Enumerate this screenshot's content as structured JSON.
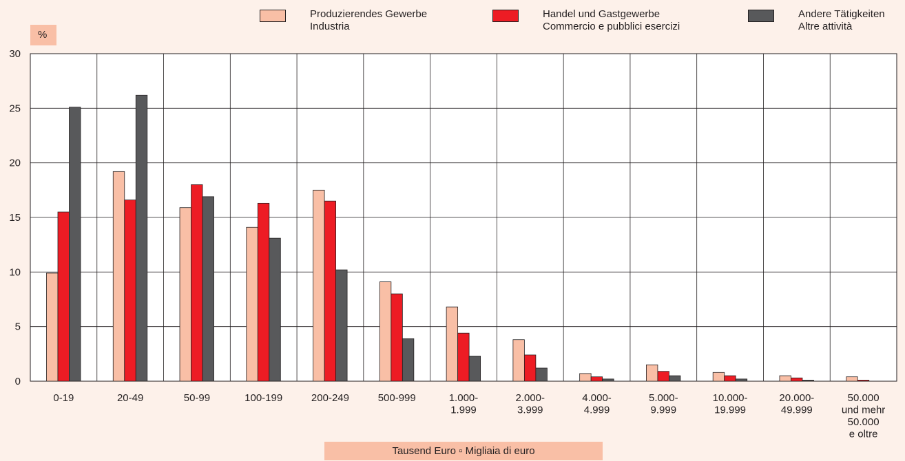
{
  "chart_data": {
    "type": "bar",
    "unit": "%",
    "xlabel": "Tausend Euro ▫ Migliaia di euro",
    "ylim": [
      0,
      30
    ],
    "yticks": [
      0,
      5,
      10,
      15,
      20,
      25,
      30
    ],
    "grid": true,
    "legend_position": "top",
    "categories": [
      [
        "0-19"
      ],
      [
        "20-49"
      ],
      [
        "50-99"
      ],
      [
        "100-199"
      ],
      [
        "200-249"
      ],
      [
        "500-999"
      ],
      [
        "1.000-",
        "1.999"
      ],
      [
        "2.000-",
        "3.999"
      ],
      [
        "4.000-",
        "4.999"
      ],
      [
        "5.000-",
        "9.999"
      ],
      [
        "10.000-",
        "19.999"
      ],
      [
        "20.000-",
        "49.999"
      ],
      [
        "50.000",
        "und mehr",
        "50.000",
        "e oltre"
      ]
    ],
    "series": [
      {
        "name": "Produzierendes Gewerbe",
        "name_it": "Industria",
        "color": "#f9bfa6",
        "values": [
          9.9,
          19.2,
          15.9,
          14.1,
          17.5,
          9.1,
          6.8,
          3.8,
          0.7,
          1.5,
          0.8,
          0.5,
          0.4
        ]
      },
      {
        "name": "Handel und Gastgewerbe",
        "name_it": "Commercio e pubblici esercizi",
        "color": "#ed1c24",
        "values": [
          15.5,
          16.6,
          18.0,
          16.3,
          16.5,
          8.0,
          4.4,
          2.4,
          0.4,
          0.9,
          0.5,
          0.3,
          0.1
        ]
      },
      {
        "name": "Andere Tätigkeiten",
        "name_it": "Altre attività",
        "color": "#58595b",
        "values": [
          25.1,
          26.2,
          16.9,
          13.1,
          10.2,
          3.9,
          2.3,
          1.2,
          0.2,
          0.5,
          0.2,
          0.1,
          0.0
        ]
      }
    ]
  }
}
